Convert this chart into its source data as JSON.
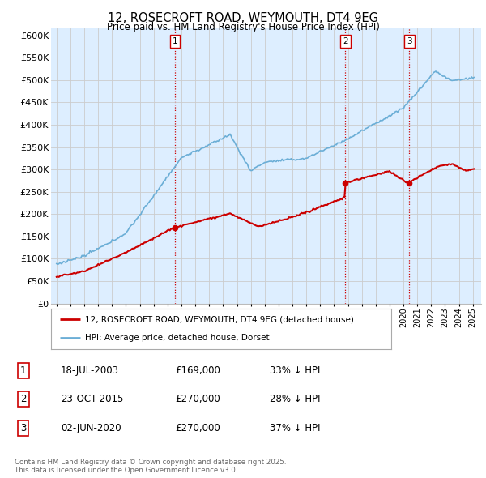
{
  "title": "12, ROSECROFT ROAD, WEYMOUTH, DT4 9EG",
  "subtitle": "Price paid vs. HM Land Registry's House Price Index (HPI)",
  "ylabel_ticks": [
    "£0",
    "£50K",
    "£100K",
    "£150K",
    "£200K",
    "£250K",
    "£300K",
    "£350K",
    "£400K",
    "£450K",
    "£500K",
    "£550K",
    "£600K"
  ],
  "ytick_vals": [
    0,
    50000,
    100000,
    150000,
    200000,
    250000,
    300000,
    350000,
    400000,
    450000,
    500000,
    550000,
    600000
  ],
  "ylim": [
    0,
    615000
  ],
  "hpi_color": "#6baed6",
  "hpi_fill_color": "#ddeeff",
  "price_color": "#cc0000",
  "vline_color": "#cc0000",
  "marker_dates": [
    2003.54,
    2015.81,
    2020.42
  ],
  "marker_prices": [
    169000,
    270000,
    270000
  ],
  "marker_labels": [
    "1",
    "2",
    "3"
  ],
  "legend_line1": "12, ROSECROFT ROAD, WEYMOUTH, DT4 9EG (detached house)",
  "legend_line2": "HPI: Average price, detached house, Dorset",
  "table_rows": [
    [
      "1",
      "18-JUL-2003",
      "£169,000",
      "33% ↓ HPI"
    ],
    [
      "2",
      "23-OCT-2015",
      "£270,000",
      "28% ↓ HPI"
    ],
    [
      "3",
      "02-JUN-2020",
      "£270,000",
      "37% ↓ HPI"
    ]
  ],
  "footnote": "Contains HM Land Registry data © Crown copyright and database right 2025.\nThis data is licensed under the Open Government Licence v3.0.",
  "background_color": "#ffffff",
  "grid_color": "#cccccc"
}
